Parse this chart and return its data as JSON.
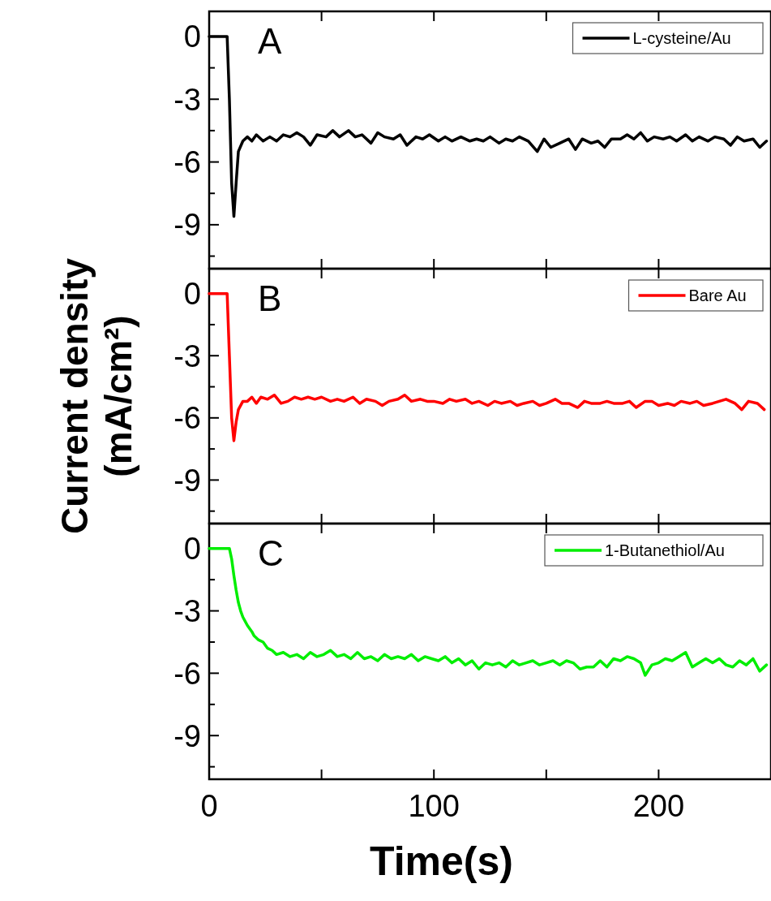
{
  "chart_data": [
    {
      "type": "line",
      "annotations": [
        "A"
      ],
      "xlim": [
        0,
        250
      ],
      "xticks": [
        0,
        {
          "value": 50,
          "label": null
        },
        100,
        {
          "value": 150,
          "label": null
        },
        200,
        {
          "value": 250,
          "label": null
        }
      ],
      "ylim": [
        -11.1,
        1.2
      ],
      "yticks": [
        0,
        {
          "value": -1.5,
          "label": null
        },
        -3,
        {
          "value": -4.5,
          "label": null
        },
        -6,
        {
          "value": -7.5,
          "label": null
        },
        -9,
        {
          "value": -10.5,
          "label": null
        }
      ],
      "tick_labels": "y",
      "legend": "top right",
      "grid": false,
      "marker": "none",
      "line_style": "solid",
      "series": [
        {
          "name": "L-cysteine/Au",
          "color": "#000000",
          "x": [
            0,
            8,
            9,
            10,
            11,
            12,
            13,
            15,
            17,
            19,
            21,
            24,
            27,
            30,
            33,
            36,
            39,
            42,
            45,
            48,
            52,
            55,
            58,
            62,
            65,
            68,
            72,
            75,
            78,
            82,
            85,
            88,
            92,
            95,
            98,
            102,
            105,
            108,
            112,
            116,
            119,
            122,
            125,
            129,
            132,
            135,
            138,
            142,
            146,
            149,
            152,
            156,
            160,
            163,
            166,
            170,
            173,
            176,
            179,
            183,
            186,
            189,
            192,
            195,
            198,
            202,
            205,
            208,
            212,
            215,
            218,
            222,
            225,
            229,
            232,
            235,
            238,
            242,
            245,
            248
          ],
          "values": [
            0,
            0,
            -3,
            -7,
            -8.6,
            -7,
            -5.5,
            -5,
            -4.8,
            -5.0,
            -4.7,
            -5.0,
            -4.8,
            -5.0,
            -4.7,
            -4.8,
            -4.6,
            -4.8,
            -5.2,
            -4.7,
            -4.8,
            -4.5,
            -4.8,
            -4.5,
            -4.8,
            -4.7,
            -5.1,
            -4.6,
            -4.8,
            -4.9,
            -4.7,
            -5.2,
            -4.8,
            -4.9,
            -4.7,
            -5.0,
            -4.8,
            -5.0,
            -4.8,
            -5.0,
            -4.9,
            -5.0,
            -4.8,
            -5.1,
            -4.9,
            -5.0,
            -4.8,
            -5.0,
            -5.5,
            -4.9,
            -5.3,
            -5.1,
            -4.9,
            -5.4,
            -4.9,
            -5.1,
            -5.0,
            -5.3,
            -4.9,
            -4.9,
            -4.7,
            -4.9,
            -4.6,
            -5.0,
            -4.8,
            -4.9,
            -4.8,
            -5.0,
            -4.7,
            -5.0,
            -4.8,
            -5.0,
            -4.8,
            -4.9,
            -5.2,
            -4.8,
            -5.0,
            -4.9,
            -5.3,
            -5.0
          ]
        }
      ]
    },
    {
      "type": "line",
      "annotations": [
        "B"
      ],
      "ylabel": "Current density\n(mA/cm²)",
      "xlim": [
        0,
        250
      ],
      "xticks": [
        0,
        {
          "value": 50,
          "label": null
        },
        100,
        {
          "value": 150,
          "label": null
        },
        200,
        {
          "value": 250,
          "label": null
        }
      ],
      "ylim": [
        -11.1,
        1.2
      ],
      "yticks": [
        0,
        {
          "value": -1.5,
          "label": null
        },
        -3,
        {
          "value": -4.5,
          "label": null
        },
        -6,
        {
          "value": -7.5,
          "label": null
        },
        -9,
        {
          "value": -10.5,
          "label": null
        }
      ],
      "tick_labels": "y",
      "legend": "top right",
      "grid": false,
      "marker": "none",
      "line_style": "solid",
      "series": [
        {
          "name": "Bare Au",
          "color": "#ff0000",
          "x": [
            0,
            8,
            9,
            10,
            11,
            12,
            13,
            15,
            17,
            19,
            21,
            23,
            26,
            29,
            32,
            35,
            38,
            41,
            44,
            47,
            50,
            54,
            57,
            60,
            64,
            67,
            70,
            74,
            77,
            80,
            84,
            87,
            90,
            94,
            97,
            100,
            104,
            107,
            110,
            114,
            117,
            120,
            124,
            127,
            130,
            134,
            137,
            140,
            144,
            147,
            150,
            154,
            157,
            160,
            164,
            167,
            170,
            174,
            177,
            180,
            184,
            187,
            190,
            194,
            197,
            200,
            204,
            207,
            210,
            214,
            217,
            220,
            224,
            227,
            230,
            234,
            237,
            240,
            244,
            247
          ],
          "values": [
            0,
            0,
            -3,
            -6,
            -7.1,
            -6.2,
            -5.6,
            -5.2,
            -5.2,
            -5.0,
            -5.3,
            -5.0,
            -5.1,
            -4.9,
            -5.3,
            -5.2,
            -5.0,
            -5.1,
            -5.0,
            -5.1,
            -5.0,
            -5.2,
            -5.1,
            -5.2,
            -5.0,
            -5.3,
            -5.1,
            -5.2,
            -5.4,
            -5.2,
            -5.1,
            -4.9,
            -5.2,
            -5.1,
            -5.2,
            -5.2,
            -5.3,
            -5.1,
            -5.2,
            -5.1,
            -5.3,
            -5.2,
            -5.4,
            -5.2,
            -5.3,
            -5.2,
            -5.4,
            -5.3,
            -5.2,
            -5.4,
            -5.3,
            -5.1,
            -5.3,
            -5.3,
            -5.5,
            -5.2,
            -5.3,
            -5.3,
            -5.2,
            -5.3,
            -5.3,
            -5.2,
            -5.5,
            -5.2,
            -5.2,
            -5.4,
            -5.3,
            -5.4,
            -5.2,
            -5.3,
            -5.2,
            -5.4,
            -5.3,
            -5.2,
            -5.1,
            -5.3,
            -5.6,
            -5.2,
            -5.3,
            -5.6
          ]
        }
      ]
    },
    {
      "type": "line",
      "annotations": [
        "C"
      ],
      "xlabel": "Time(s)",
      "xlim": [
        0,
        250
      ],
      "xticks": [
        0,
        {
          "value": 50,
          "label": null
        },
        100,
        {
          "value": 150,
          "label": null
        },
        200,
        {
          "value": 250,
          "label": null
        }
      ],
      "ylim": [
        -11.1,
        1.2
      ],
      "yticks": [
        0,
        {
          "value": -1.5,
          "label": null
        },
        -3,
        {
          "value": -4.5,
          "label": null
        },
        -6,
        {
          "value": -7.5,
          "label": null
        },
        -9,
        {
          "value": -10.5,
          "label": null
        }
      ],
      "legend": "top right",
      "grid": false,
      "marker": "none",
      "line_style": "solid",
      "series": [
        {
          "name": "1-Butanethiol/Au",
          "color": "#00ee00",
          "x": [
            0,
            9,
            10,
            11,
            12,
            13,
            14,
            15,
            17,
            19,
            20,
            22,
            24,
            26,
            28,
            30,
            33,
            36,
            39,
            42,
            45,
            48,
            51,
            54,
            57,
            60,
            63,
            66,
            69,
            72,
            75,
            78,
            81,
            84,
            87,
            90,
            93,
            96,
            99,
            102,
            105,
            108,
            111,
            114,
            117,
            120,
            123,
            126,
            129,
            132,
            135,
            138,
            141,
            144,
            147,
            150,
            153,
            156,
            159,
            162,
            165,
            168,
            171,
            174,
            177,
            180,
            183,
            186,
            189,
            192,
            194,
            197,
            200,
            203,
            206,
            209,
            212,
            215,
            218,
            221,
            224,
            227,
            230,
            233,
            236,
            239,
            242,
            245,
            248
          ],
          "values": [
            0,
            0,
            -0.5,
            -1.3,
            -2.0,
            -2.6,
            -3.0,
            -3.3,
            -3.7,
            -4.0,
            -4.2,
            -4.4,
            -4.5,
            -4.8,
            -4.9,
            -5.1,
            -5.0,
            -5.2,
            -5.1,
            -5.3,
            -5.0,
            -5.2,
            -5.1,
            -4.9,
            -5.2,
            -5.1,
            -5.3,
            -5.0,
            -5.3,
            -5.2,
            -5.4,
            -5.1,
            -5.3,
            -5.2,
            -5.3,
            -5.1,
            -5.4,
            -5.2,
            -5.3,
            -5.4,
            -5.2,
            -5.5,
            -5.3,
            -5.6,
            -5.4,
            -5.8,
            -5.5,
            -5.6,
            -5.5,
            -5.7,
            -5.4,
            -5.6,
            -5.5,
            -5.4,
            -5.6,
            -5.5,
            -5.4,
            -5.6,
            -5.4,
            -5.5,
            -5.8,
            -5.7,
            -5.7,
            -5.4,
            -5.7,
            -5.3,
            -5.4,
            -5.2,
            -5.3,
            -5.5,
            -6.1,
            -5.6,
            -5.5,
            -5.3,
            -5.4,
            -5.2,
            -5.0,
            -5.7,
            -5.5,
            -5.3,
            -5.5,
            -5.3,
            -5.6,
            -5.7,
            -5.4,
            -5.6,
            -5.3,
            -5.9,
            -5.6
          ]
        }
      ]
    }
  ]
}
